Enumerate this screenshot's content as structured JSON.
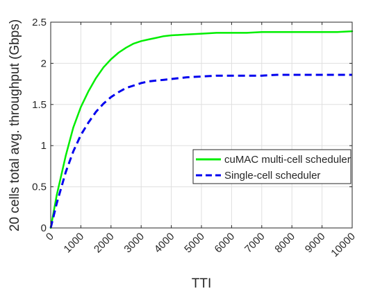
{
  "chart_data": {
    "type": "line",
    "title": "",
    "xlabel": "TTI",
    "ylabel": "20 cells total avg. throughput (Gbps)",
    "xlim": [
      0,
      10000
    ],
    "ylim": [
      0,
      2.5
    ],
    "xticks": [
      0,
      1000,
      2000,
      3000,
      4000,
      5000,
      6000,
      7000,
      8000,
      9000,
      10000
    ],
    "yticks": [
      0,
      0.5,
      1,
      1.5,
      2,
      2.5
    ],
    "xtick_labels": [
      "0",
      "1000",
      "2000",
      "3000",
      "4000",
      "5000",
      "6000",
      "7000",
      "8000",
      "9000",
      "10000"
    ],
    "ytick_labels": [
      "0",
      "0.5",
      "1",
      "1.5",
      "2",
      "2.5"
    ],
    "grid": true,
    "legend_position": "center-right",
    "series": [
      {
        "name": "cuMAC multi-cell scheduler",
        "color": "#00ee00",
        "line_style": "solid",
        "x": [
          0,
          200,
          500,
          750,
          1000,
          1250,
          1500,
          1750,
          2000,
          2250,
          2500,
          2750,
          3000,
          3250,
          3500,
          3750,
          4000,
          4500,
          5000,
          5500,
          6000,
          6500,
          7000,
          7500,
          8000,
          8500,
          9000,
          9500,
          10000
        ],
        "y": [
          0.0,
          0.4,
          0.88,
          1.22,
          1.47,
          1.66,
          1.82,
          1.95,
          2.05,
          2.13,
          2.19,
          2.24,
          2.27,
          2.29,
          2.31,
          2.33,
          2.34,
          2.35,
          2.36,
          2.37,
          2.37,
          2.37,
          2.38,
          2.38,
          2.38,
          2.38,
          2.38,
          2.38,
          2.39
        ]
      },
      {
        "name": "Single-cell scheduler",
        "color": "#0000ee",
        "line_style": "dashed",
        "x": [
          0,
          200,
          500,
          750,
          1000,
          1250,
          1500,
          1750,
          2000,
          2250,
          2500,
          2750,
          3000,
          3250,
          3500,
          3750,
          4000,
          4500,
          5000,
          5500,
          6000,
          6500,
          7000,
          7500,
          8000,
          8500,
          9000,
          9500,
          10000
        ],
        "y": [
          0.0,
          0.3,
          0.68,
          0.93,
          1.13,
          1.28,
          1.41,
          1.51,
          1.59,
          1.65,
          1.7,
          1.73,
          1.76,
          1.78,
          1.79,
          1.8,
          1.81,
          1.83,
          1.84,
          1.85,
          1.85,
          1.85,
          1.85,
          1.86,
          1.86,
          1.86,
          1.86,
          1.86,
          1.86
        ]
      }
    ]
  }
}
